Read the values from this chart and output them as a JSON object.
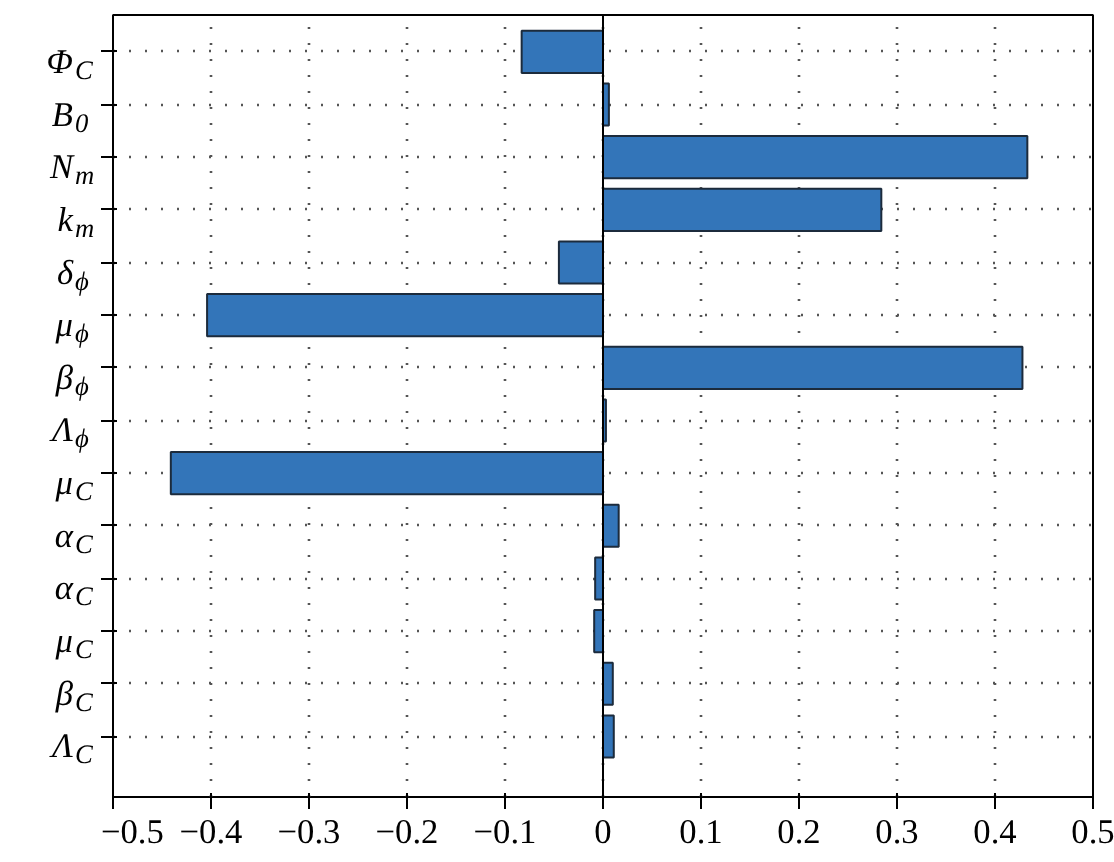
{
  "chart_data": {
    "type": "bar",
    "orientation": "horizontal",
    "categories": [
      "Φ$_{C}$",
      "B$_{0}$",
      "N$_{m}$",
      "k$_{m}$",
      "δ$_{ϕ}$",
      "μ$_{ϕ}$",
      "β$_{ϕ}$",
      "Λ$_{ϕ}$",
      "μ$_{C}$",
      "α$_{C}$",
      "α$_{C}$",
      "μ$_{C}$",
      "β$_{C}$",
      "Λ$_{C}$"
    ],
    "values": [
      -0.083,
      0.006,
      0.433,
      0.284,
      -0.045,
      -0.404,
      0.428,
      0.003,
      -0.441,
      0.016,
      -0.008,
      -0.009,
      0.01,
      0.011
    ],
    "color": "#3375b9",
    "xlim": [
      -0.5,
      0.5
    ],
    "xticks": [
      {
        "value": -0.5,
        "label": "−0.5"
      },
      {
        "value": -0.4,
        "label": "−0.4"
      },
      {
        "value": -0.3,
        "label": "−0.3"
      },
      {
        "value": -0.2,
        "label": "−0.2"
      },
      {
        "value": -0.1,
        "label": "−0.1"
      },
      0,
      0.1,
      0.2,
      0.3,
      0.4,
      0.5
    ],
    "grid": true
  }
}
